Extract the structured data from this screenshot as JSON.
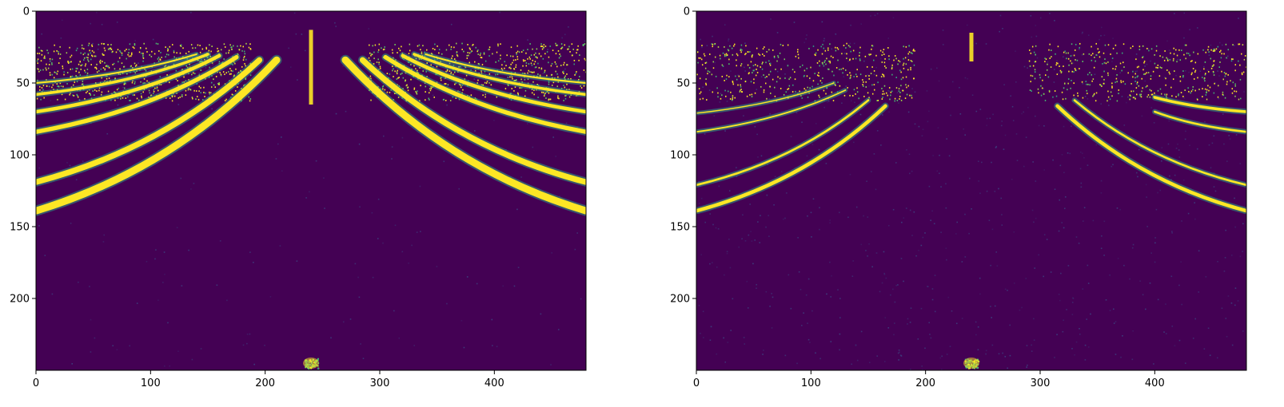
{
  "chart_data": [
    {
      "type": "heatmap",
      "title": "",
      "xlabel": "",
      "ylabel": "",
      "xlim": [
        0,
        480
      ],
      "ylim": [
        250,
        0
      ],
      "xticks": [
        0,
        100,
        200,
        300,
        400
      ],
      "yticks": [
        0,
        50,
        100,
        150,
        200
      ],
      "colormap": "viridis",
      "background_color": "#440154",
      "highlight_color": "#fde725",
      "noise_level": 0.05,
      "point_noise_density": 0.55,
      "features": [
        {
          "kind": "arc",
          "side": "left",
          "x_start": 0,
          "y_start": 139,
          "x_end": 210,
          "y_end": 34,
          "width": 5
        },
        {
          "kind": "arc",
          "side": "left",
          "x_start": 0,
          "y_start": 119,
          "x_end": 195,
          "y_end": 34,
          "width": 4
        },
        {
          "kind": "arc",
          "side": "left",
          "x_start": 0,
          "y_start": 84,
          "x_end": 175,
          "y_end": 32,
          "width": 3
        },
        {
          "kind": "arc",
          "side": "left",
          "x_start": 0,
          "y_start": 70,
          "x_end": 160,
          "y_end": 31,
          "width": 2.5
        },
        {
          "kind": "arc",
          "side": "left",
          "x_start": 0,
          "y_start": 58,
          "x_end": 150,
          "y_end": 30,
          "width": 2
        },
        {
          "kind": "arc",
          "side": "left",
          "x_start": 0,
          "y_start": 50,
          "x_end": 140,
          "y_end": 30,
          "width": 1.2
        },
        {
          "kind": "arc",
          "side": "right",
          "x_start": 270,
          "y_start": 34,
          "x_end": 480,
          "y_end": 139,
          "width": 5
        },
        {
          "kind": "arc",
          "side": "right",
          "x_start": 285,
          "y_start": 34,
          "x_end": 480,
          "y_end": 119,
          "width": 4
        },
        {
          "kind": "arc",
          "side": "right",
          "x_start": 305,
          "y_start": 32,
          "x_end": 480,
          "y_end": 84,
          "width": 3
        },
        {
          "kind": "arc",
          "side": "right",
          "x_start": 320,
          "y_start": 31,
          "x_end": 480,
          "y_end": 70,
          "width": 2.5
        },
        {
          "kind": "arc",
          "side": "right",
          "x_start": 330,
          "y_start": 30,
          "x_end": 480,
          "y_end": 58,
          "width": 2
        },
        {
          "kind": "arc",
          "side": "right",
          "x_start": 340,
          "y_start": 30,
          "x_end": 480,
          "y_end": 50,
          "width": 1.2
        },
        {
          "kind": "pole",
          "x": 240,
          "y_start": 13,
          "y_end": 65
        },
        {
          "kind": "blob",
          "x": 240,
          "y": 245
        }
      ]
    },
    {
      "type": "heatmap",
      "title": "",
      "xlabel": "",
      "ylabel": "",
      "xlim": [
        0,
        480
      ],
      "ylim": [
        250,
        0
      ],
      "xticks": [
        0,
        100,
        200,
        300,
        400
      ],
      "yticks": [
        0,
        50,
        100,
        150,
        200
      ],
      "colormap": "viridis",
      "background_color": "#440154",
      "highlight_color": "#fde725",
      "noise_level": 0.18,
      "point_noise_density": 0.35,
      "features": [
        {
          "kind": "arc",
          "side": "left",
          "x_start": 0,
          "y_start": 139,
          "x_end": 165,
          "y_end": 66,
          "width": 2.5
        },
        {
          "kind": "arc",
          "side": "left",
          "x_start": 0,
          "y_start": 121,
          "x_end": 150,
          "y_end": 62,
          "width": 1.5
        },
        {
          "kind": "arc",
          "side": "left",
          "x_start": 0,
          "y_start": 84,
          "x_end": 130,
          "y_end": 55,
          "width": 1
        },
        {
          "kind": "arc",
          "side": "left",
          "x_start": 0,
          "y_start": 71,
          "x_end": 120,
          "y_end": 50,
          "width": 0.8
        },
        {
          "kind": "arc",
          "side": "right",
          "x_start": 315,
          "y_start": 66,
          "x_end": 480,
          "y_end": 139,
          "width": 2.5
        },
        {
          "kind": "arc",
          "side": "right",
          "x_start": 330,
          "y_start": 62,
          "x_end": 480,
          "y_end": 121,
          "width": 1.5
        },
        {
          "kind": "arc",
          "side": "right",
          "x_start": 400,
          "y_start": 60,
          "x_end": 480,
          "y_end": 70,
          "width": 2
        },
        {
          "kind": "arc",
          "side": "right",
          "x_start": 400,
          "y_start": 70,
          "x_end": 480,
          "y_end": 84,
          "width": 1.5
        },
        {
          "kind": "pole",
          "x": 240,
          "y_start": 15,
          "y_end": 35
        },
        {
          "kind": "blob",
          "x": 240,
          "y": 245
        }
      ]
    }
  ]
}
